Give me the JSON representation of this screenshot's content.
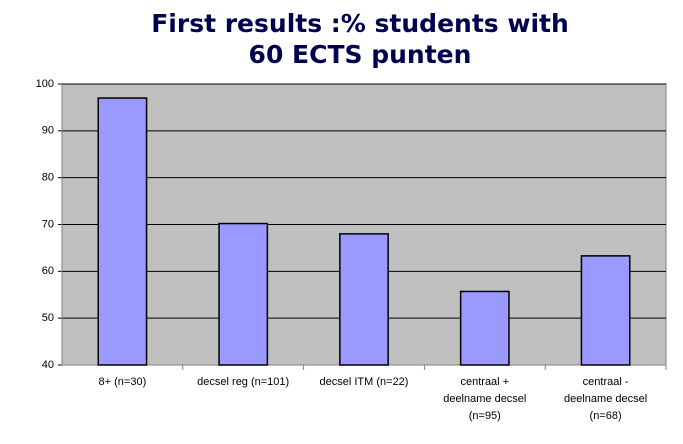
{
  "chart_data": {
    "type": "bar",
    "title": [
      "First results :% students with",
      "60 ECTS punten"
    ],
    "categories": [
      [
        "8+ (n=30)"
      ],
      [
        "decsel reg (n=101)"
      ],
      [
        "decsel ITM (n=22)"
      ],
      [
        "centraal +",
        "deelname decsel",
        "(n=95)"
      ],
      [
        "centraal -",
        "deelname decsel",
        "(n=68)"
      ]
    ],
    "values": [
      97,
      70.2,
      68,
      55.7,
      63.3
    ],
    "color": "#9999ff",
    "ylim": [
      40,
      100
    ],
    "yticks": [
      40,
      50,
      60,
      70,
      80,
      90,
      100
    ],
    "grid": true
  }
}
